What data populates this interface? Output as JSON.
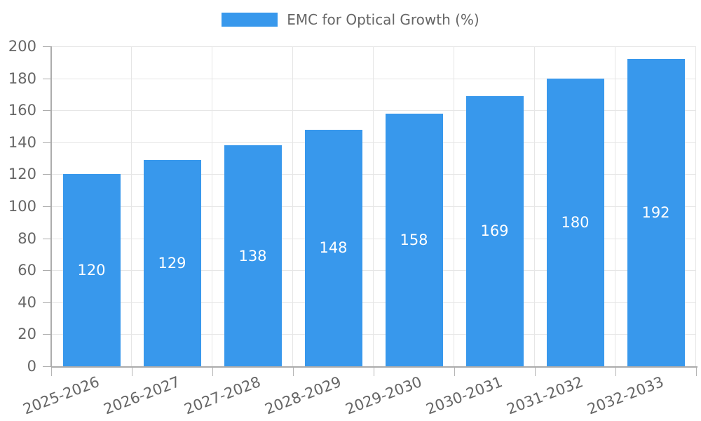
{
  "chart": {
    "legend": {
      "label": "EMC for Optical Growth (%)"
    },
    "colors": {
      "bar": "#3898EC",
      "bar_label": "#FFFFFF",
      "axis_text": "#666666",
      "grid": "#E6E6E6",
      "axis_line": "#ACACAC",
      "tick": "#B5B5B5"
    }
  },
  "chart_data": {
    "type": "bar",
    "title": "EMC for Optical Growth (%)",
    "series_name": "EMC for Optical Growth (%)",
    "categories": [
      "2025-2026",
      "2026-2027",
      "2027-2028",
      "2028-2029",
      "2029-2030",
      "2030-2031",
      "2031-2032",
      "2032-2033"
    ],
    "values": [
      120,
      129,
      138,
      148,
      158,
      169,
      180,
      192
    ],
    "xlabel": "",
    "ylabel": "",
    "ylim": [
      0,
      200
    ],
    "ytick_step": 20,
    "yticks": [
      0,
      20,
      40,
      60,
      80,
      100,
      120,
      140,
      160,
      180,
      200
    ],
    "grid": true,
    "legend_position": "top",
    "data_labels": "inside-center",
    "x_label_rotation_deg": -21
  }
}
